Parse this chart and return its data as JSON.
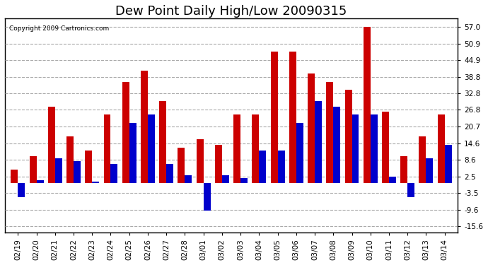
{
  "title": "Dew Point Daily High/Low 20090315",
  "copyright": "Copyright 2009 Cartronics.com",
  "dates": [
    "02/19",
    "02/20",
    "02/21",
    "02/22",
    "02/23",
    "02/24",
    "02/25",
    "02/26",
    "02/27",
    "02/28",
    "03/01",
    "03/02",
    "03/03",
    "03/04",
    "03/05",
    "03/06",
    "03/07",
    "03/08",
    "03/09",
    "03/10",
    "03/11",
    "03/12",
    "03/13",
    "03/14"
  ],
  "highs": [
    5.0,
    10.0,
    28.0,
    17.0,
    12.0,
    25.0,
    37.0,
    41.0,
    30.0,
    13.0,
    16.0,
    14.0,
    25.0,
    25.0,
    48.0,
    48.0,
    40.0,
    37.0,
    34.0,
    57.0,
    26.0,
    10.0,
    17.0,
    25.0
  ],
  "lows": [
    -5.0,
    1.0,
    9.0,
    8.0,
    0.5,
    7.0,
    22.0,
    25.0,
    7.0,
    3.0,
    -10.0,
    3.0,
    2.0,
    12.0,
    12.0,
    22.0,
    30.0,
    28.0,
    25.0,
    25.0,
    2.5,
    -5.0,
    9.0,
    14.0
  ],
  "high_color": "#cc0000",
  "low_color": "#0000cc",
  "bg_color": "#ffffff",
  "plot_bg_color": "#ffffff",
  "grid_color": "#aaaaaa",
  "title_color": "#000000",
  "copyright_color": "#000000",
  "yticks": [
    -15.6,
    -9.6,
    -3.5,
    2.5,
    8.6,
    14.6,
    20.7,
    26.8,
    32.8,
    38.8,
    44.9,
    50.9,
    57.0
  ],
  "ymin": -18.0,
  "ymax": 60.0,
  "bar_width": 0.38,
  "title_fontsize": 13,
  "tick_fontsize": 7.5
}
